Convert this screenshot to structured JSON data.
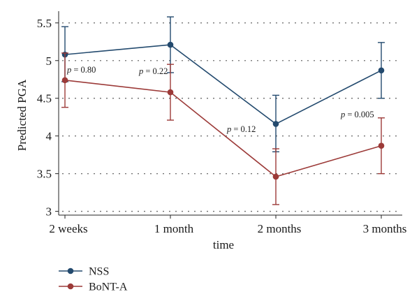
{
  "chart_data": {
    "type": "line",
    "categories": [
      "2 weeks",
      "1 month",
      "2 months",
      "3 months"
    ],
    "xlabel": "time",
    "ylabel": "Predicted PGA",
    "ylim": [
      2.95,
      5.6
    ],
    "yticks": [
      3,
      3.5,
      4,
      4.5,
      5,
      5.5
    ],
    "ytick_labels": [
      "3",
      "3.5",
      "4",
      "4.5",
      "5",
      "5.5"
    ],
    "grid": "horizontal dotted",
    "legend_position": "bottom-left",
    "series": [
      {
        "name": "NSS",
        "color": "#234a6e",
        "values": [
          5.08,
          5.21,
          4.16,
          4.87
        ],
        "ci_low": [
          4.72,
          4.84,
          3.79,
          4.5
        ],
        "ci_high": [
          5.45,
          5.58,
          4.54,
          5.24
        ]
      },
      {
        "name": "BoNT-A",
        "color": "#9c3a38",
        "values": [
          4.74,
          4.58,
          3.46,
          3.87
        ],
        "ci_low": [
          4.38,
          4.21,
          3.09,
          3.5
        ],
        "ci_high": [
          5.1,
          4.95,
          3.83,
          4.24
        ]
      }
    ],
    "annotations": [
      {
        "category": "2 weeks",
        "p": "p",
        "text": " = 0.80"
      },
      {
        "category": "1 month",
        "p": "p",
        "text": " = 0.22"
      },
      {
        "category": "2 months",
        "p": "p",
        "text": " = 0.12"
      },
      {
        "category": "3 months",
        "p": "p",
        "text": " = 0.005"
      }
    ]
  }
}
